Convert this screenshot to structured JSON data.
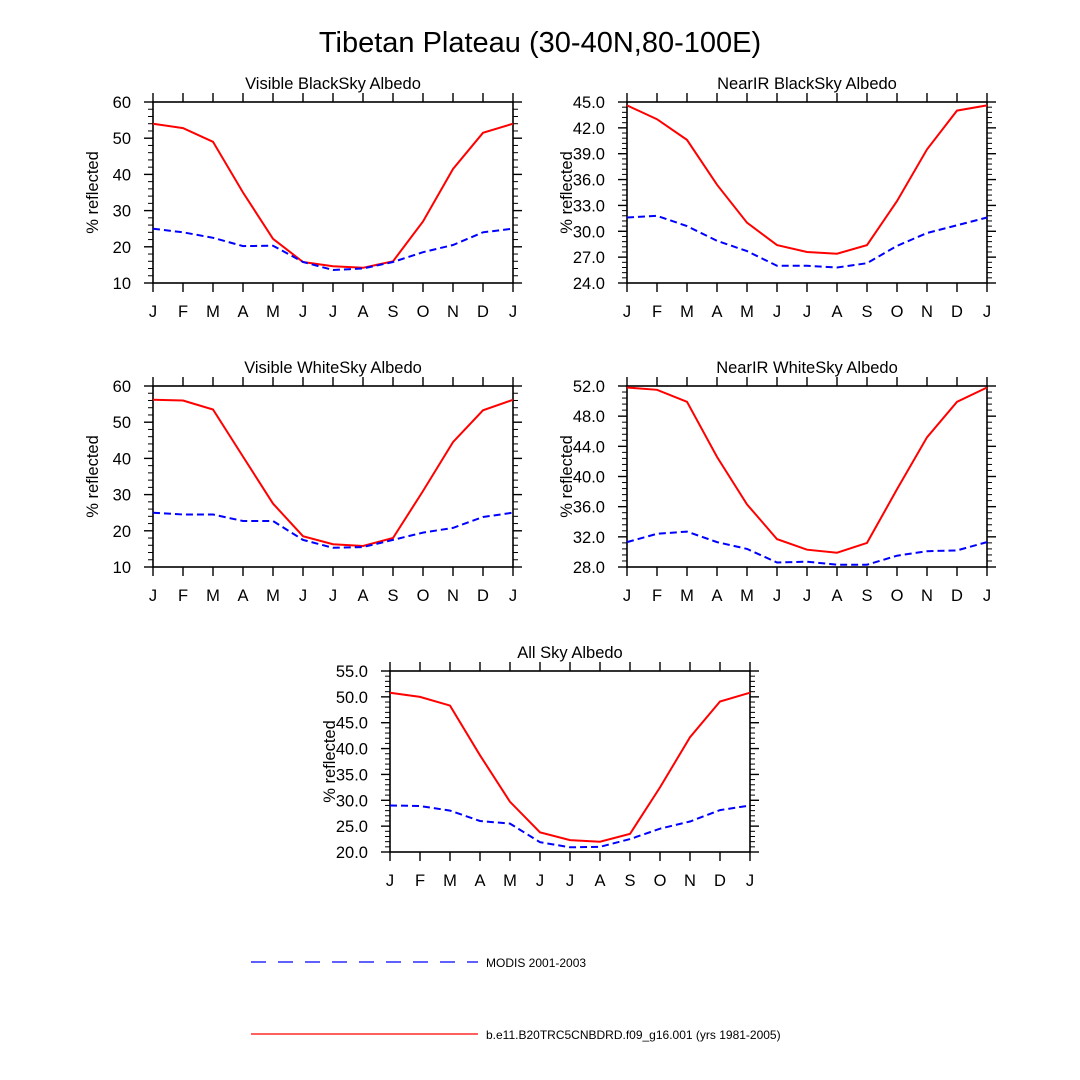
{
  "figure": {
    "title": "Tibetan Plateau (30-40N,80-100E)"
  },
  "legend": {
    "placement": "bottom-center",
    "entries": [
      {
        "label": "MODIS 2001-2003",
        "color": "#0000ff",
        "dash": "dashed"
      },
      {
        "label": "b.e11.B20TRC5CNBDRD.f09_g16.001 (yrs 1981-2005)",
        "color": "#ff0000",
        "dash": "solid"
      }
    ]
  },
  "chart_data": [
    {
      "type": "line",
      "title": "Visible BlackSky Albedo",
      "ylabel": "% reflected",
      "xlabel": "",
      "categories": [
        "J",
        "F",
        "M",
        "A",
        "M",
        "J",
        "J",
        "A",
        "S",
        "O",
        "N",
        "D",
        "J"
      ],
      "ylim": [
        10,
        60
      ],
      "yticks": [
        10,
        20,
        30,
        40,
        50,
        60
      ],
      "ytick_labels": [
        "10",
        "20",
        "30",
        "40",
        "50",
        "60"
      ],
      "series": [
        {
          "name": "b.e11.B20TRC5CNBDRD.f09_g16.001 (yrs 1981-2005)",
          "color": "#ff0000",
          "dash": "solid",
          "values": [
            54.0,
            52.8,
            49.0,
            35.0,
            22.2,
            15.8,
            14.6,
            14.2,
            16.0,
            27.0,
            41.5,
            51.5,
            54.0
          ]
        },
        {
          "name": "MODIS 2001-2003",
          "color": "#0000ff",
          "dash": "dashed",
          "values": [
            25.0,
            24.0,
            22.5,
            20.2,
            20.3,
            15.8,
            13.6,
            14.0,
            15.8,
            18.5,
            20.5,
            24.0,
            25.0
          ]
        }
      ]
    },
    {
      "type": "line",
      "title": "NearIR BlackSky Albedo",
      "ylabel": "% reflected",
      "xlabel": "",
      "categories": [
        "J",
        "F",
        "M",
        "A",
        "M",
        "J",
        "J",
        "A",
        "S",
        "O",
        "N",
        "D",
        "J"
      ],
      "ylim": [
        24.0,
        45.0
      ],
      "yticks": [
        24,
        27,
        30,
        33,
        36,
        39,
        42,
        45
      ],
      "ytick_labels": [
        "24.0",
        "27.0",
        "30.0",
        "33.0",
        "36.0",
        "39.0",
        "42.0",
        "45.0"
      ],
      "series": [
        {
          "name": "b.e11.B20TRC5CNBDRD.f09_g16.001 (yrs 1981-2005)",
          "color": "#ff0000",
          "dash": "solid",
          "values": [
            44.6,
            43.0,
            40.6,
            35.4,
            31.0,
            28.4,
            27.6,
            27.4,
            28.4,
            33.5,
            39.5,
            44.0,
            44.6
          ]
        },
        {
          "name": "MODIS 2001-2003",
          "color": "#0000ff",
          "dash": "dashed",
          "values": [
            31.6,
            31.8,
            30.6,
            28.9,
            27.7,
            26.0,
            26.0,
            25.8,
            26.3,
            28.3,
            29.8,
            30.7,
            31.6
          ]
        }
      ]
    },
    {
      "type": "line",
      "title": "Visible WhiteSky Albedo",
      "ylabel": "% reflected",
      "xlabel": "",
      "categories": [
        "J",
        "F",
        "M",
        "A",
        "M",
        "J",
        "J",
        "A",
        "S",
        "O",
        "N",
        "D",
        "J"
      ],
      "ylim": [
        10,
        60
      ],
      "yticks": [
        10,
        20,
        30,
        40,
        50,
        60
      ],
      "ytick_labels": [
        "10",
        "20",
        "30",
        "40",
        "50",
        "60"
      ],
      "series": [
        {
          "name": "b.e11.B20TRC5CNBDRD.f09_g16.001 (yrs 1981-2005)",
          "color": "#ff0000",
          "dash": "solid",
          "values": [
            56.2,
            56.0,
            53.5,
            40.5,
            27.5,
            18.5,
            16.3,
            15.8,
            18.0,
            31.0,
            44.5,
            53.3,
            56.2
          ]
        },
        {
          "name": "MODIS 2001-2003",
          "color": "#0000ff",
          "dash": "dashed",
          "values": [
            25.0,
            24.5,
            24.5,
            22.7,
            22.7,
            17.5,
            15.3,
            15.5,
            17.5,
            19.5,
            20.8,
            23.8,
            25.0
          ]
        }
      ]
    },
    {
      "type": "line",
      "title": "NearIR WhiteSky Albedo",
      "ylabel": "% reflected",
      "xlabel": "",
      "categories": [
        "J",
        "F",
        "M",
        "A",
        "M",
        "J",
        "J",
        "A",
        "S",
        "O",
        "N",
        "D",
        "J"
      ],
      "ylim": [
        28.0,
        52.0
      ],
      "yticks": [
        28,
        32,
        36,
        40,
        44,
        48,
        52
      ],
      "ytick_labels": [
        "28.0",
        "32.0",
        "36.0",
        "40.0",
        "44.0",
        "48.0",
        "52.0"
      ],
      "series": [
        {
          "name": "b.e11.B20TRC5CNBDRD.f09_g16.001 (yrs 1981-2005)",
          "color": "#ff0000",
          "dash": "solid",
          "values": [
            51.8,
            51.5,
            49.9,
            42.6,
            36.3,
            31.7,
            30.3,
            29.9,
            31.2,
            38.3,
            45.2,
            49.9,
            51.8
          ]
        },
        {
          "name": "MODIS 2001-2003",
          "color": "#0000ff",
          "dash": "dashed",
          "values": [
            31.3,
            32.4,
            32.7,
            31.3,
            30.4,
            28.6,
            28.7,
            28.3,
            28.3,
            29.5,
            30.1,
            30.2,
            31.3
          ]
        }
      ]
    },
    {
      "type": "line",
      "title": "All Sky Albedo",
      "ylabel": "% reflected",
      "xlabel": "",
      "categories": [
        "J",
        "F",
        "M",
        "A",
        "M",
        "J",
        "J",
        "A",
        "S",
        "O",
        "N",
        "D",
        "J"
      ],
      "ylim": [
        20.0,
        55.0
      ],
      "yticks": [
        20,
        25,
        30,
        35,
        40,
        45,
        50,
        55
      ],
      "ytick_labels": [
        "20.0",
        "25.0",
        "30.0",
        "35.0",
        "40.0",
        "45.0",
        "50.0",
        "55.0"
      ],
      "series": [
        {
          "name": "b.e11.B20TRC5CNBDRD.f09_g16.001 (yrs 1981-2005)",
          "color": "#ff0000",
          "dash": "solid",
          "values": [
            50.8,
            50.0,
            48.3,
            38.7,
            29.7,
            23.8,
            22.3,
            22.0,
            23.5,
            32.5,
            42.2,
            49.1,
            50.8
          ]
        },
        {
          "name": "MODIS 2001-2003",
          "color": "#0000ff",
          "dash": "dashed",
          "values": [
            29.0,
            28.9,
            28.0,
            26.0,
            25.5,
            21.9,
            20.9,
            21.0,
            22.5,
            24.5,
            25.9,
            28.1,
            29.0
          ]
        }
      ]
    }
  ]
}
